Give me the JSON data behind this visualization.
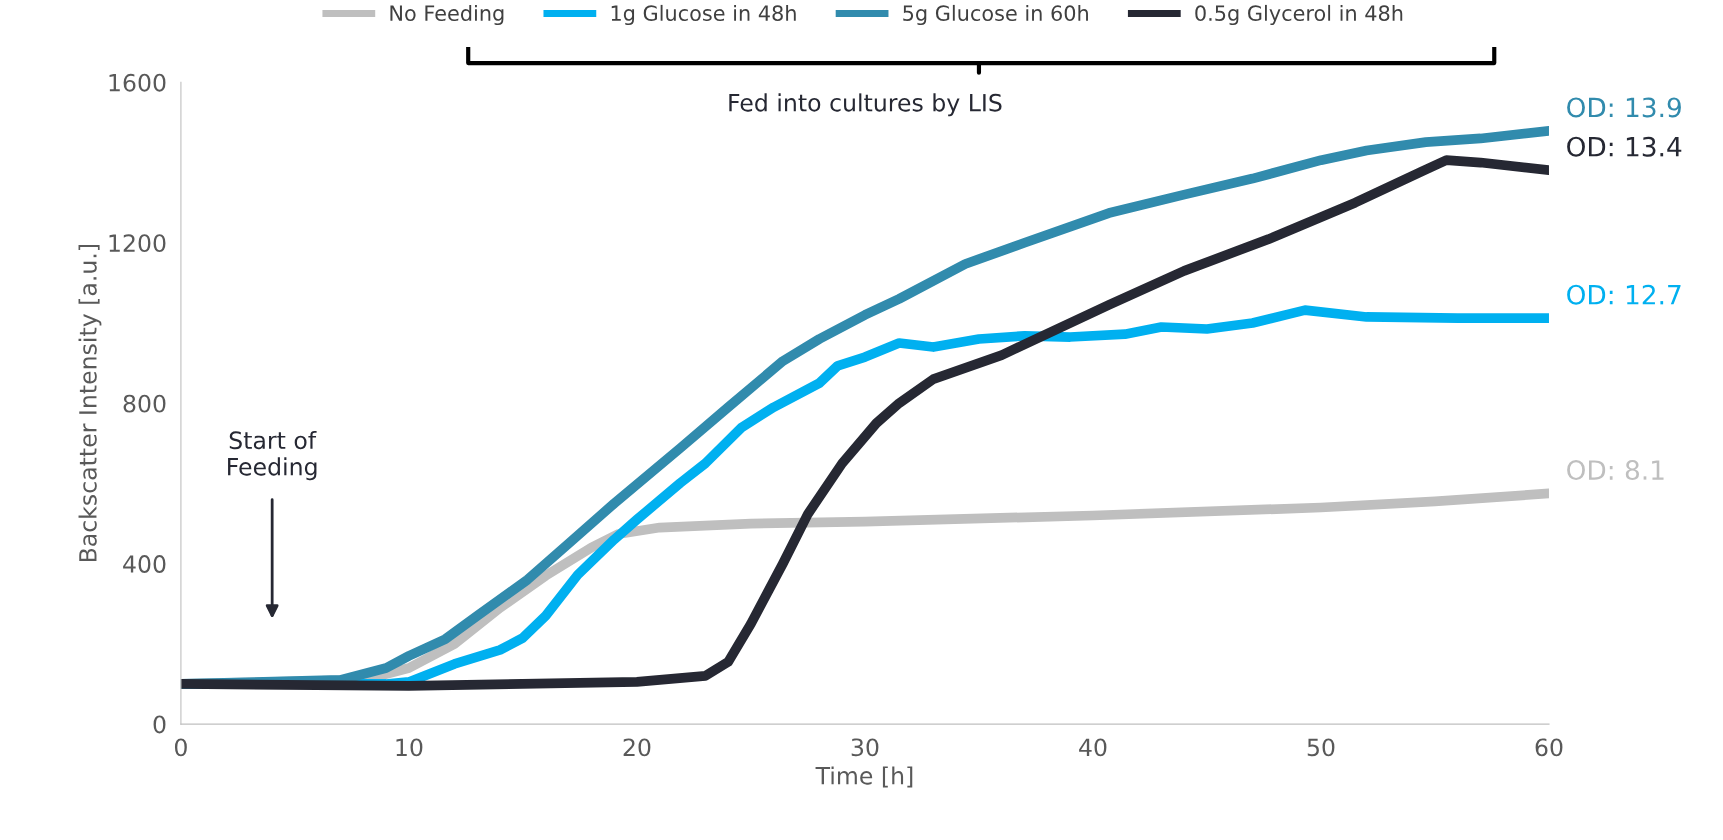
{
  "chart_data": {
    "type": "line",
    "xlabel": "Time [h]",
    "ylabel": "Backscatter Intensity [a.u.]",
    "xlim": [
      0,
      60
    ],
    "xticks": [
      0,
      10,
      20,
      30,
      40,
      50,
      60
    ],
    "ylim": [
      0,
      1600
    ],
    "yticks": [
      0,
      400,
      800,
      1200,
      1600
    ],
    "grid": false,
    "legend": "top",
    "series": [
      {
        "name": "No Feeding",
        "color": "#bfbfbf",
        "x": [
          0,
          8,
          10,
          12,
          14,
          16,
          18,
          19.2,
          21,
          25,
          30,
          40,
          50,
          55,
          60
        ],
        "values": [
          100,
          110,
          140,
          200,
          290,
          370,
          440,
          474,
          490,
          500,
          505,
          520,
          540,
          555,
          575
        ]
      },
      {
        "name": "1g Glucose in 48h",
        "color": "#00b0f0",
        "x": [
          0,
          9,
          10,
          12,
          14,
          15,
          16,
          17.4,
          19,
          20,
          21.9,
          23,
          24.6,
          26,
          28,
          28.8,
          30,
          31.5,
          33,
          35,
          37,
          39,
          41.4,
          43,
          45,
          47,
          49.3,
          52,
          56,
          60
        ],
        "values": [
          100,
          100,
          105,
          150,
          185,
          215,
          270,
          372,
          460,
          510,
          601,
          650,
          740,
          790,
          850,
          893,
          915,
          950,
          940,
          960,
          968,
          965,
          972,
          990,
          985,
          1000,
          1032,
          1015,
          1012,
          1012
        ]
      },
      {
        "name": "5g Glucose in 60h",
        "color": "#318bad",
        "x": [
          0,
          7,
          9,
          10,
          11.6,
          13,
          15.2,
          17,
          19,
          21.9,
          24,
          26.4,
          28,
          30,
          31.5,
          34.4,
          37,
          40.7,
          44,
          47,
          50,
          52,
          54.6,
          57,
          60
        ],
        "values": [
          100,
          110,
          140,
          170,
          212,
          270,
          360,
          450,
          550,
          688,
          790,
          905,
          960,
          1020,
          1060,
          1147,
          1200,
          1274,
          1320,
          1360,
          1406,
          1430,
          1451,
          1460,
          1479
        ]
      },
      {
        "name": "0.5g Glycerol in 48h",
        "color": "#262833",
        "x": [
          0,
          10,
          20,
          23,
          24,
          25,
          26.4,
          27.5,
          29,
          30.5,
          31.5,
          33,
          36,
          40.7,
          44,
          47.7,
          51.5,
          54.5,
          55.5,
          57,
          60
        ],
        "values": [
          100,
          95,
          105,
          120,
          155,
          250,
          400,
          524,
          650,
          750,
          800,
          860,
          920,
          1045,
          1130,
          1209,
          1300,
          1380,
          1406,
          1400,
          1381
        ]
      }
    ],
    "annotations": [
      "OD: 8.1",
      "OD: 12.7",
      "OD: 13.9",
      "OD: 13.4",
      "Start of\nFeeding",
      "Fed into cultures by LIS"
    ]
  }
}
